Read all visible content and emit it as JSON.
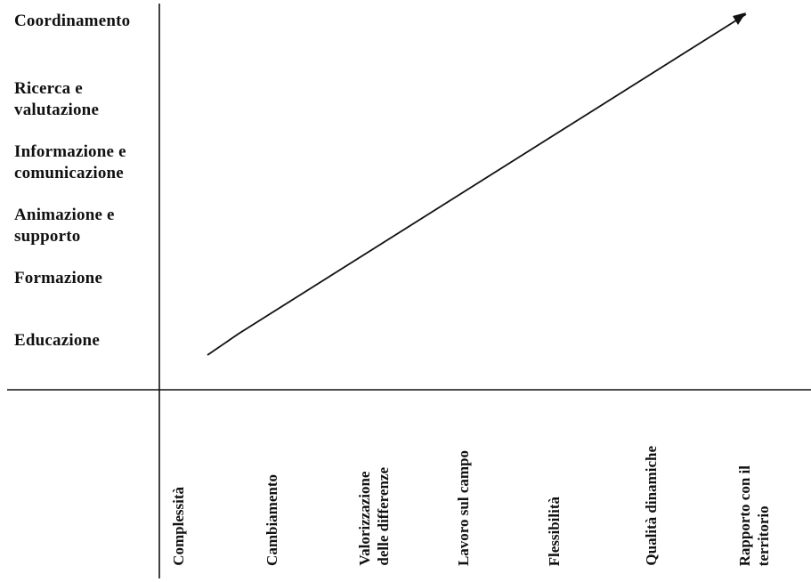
{
  "y_axis_labels": [
    "Coordinamento",
    "Ricerca e\nvalutazione",
    "Informazione e\ncomunicazione",
    "Animazione e\nsupporto",
    "Formazione",
    "Educazione"
  ],
  "x_axis_labels": [
    "Complessità",
    "Cambiamento",
    "Valorizzazione\ndelle differenze",
    "Lavoro sul campo",
    "Flessibilità",
    "Qualità dinamiche",
    "Rapporto con il\nterritorio"
  ],
  "colors": {
    "ink": "#111111",
    "background": "#ffffff"
  }
}
